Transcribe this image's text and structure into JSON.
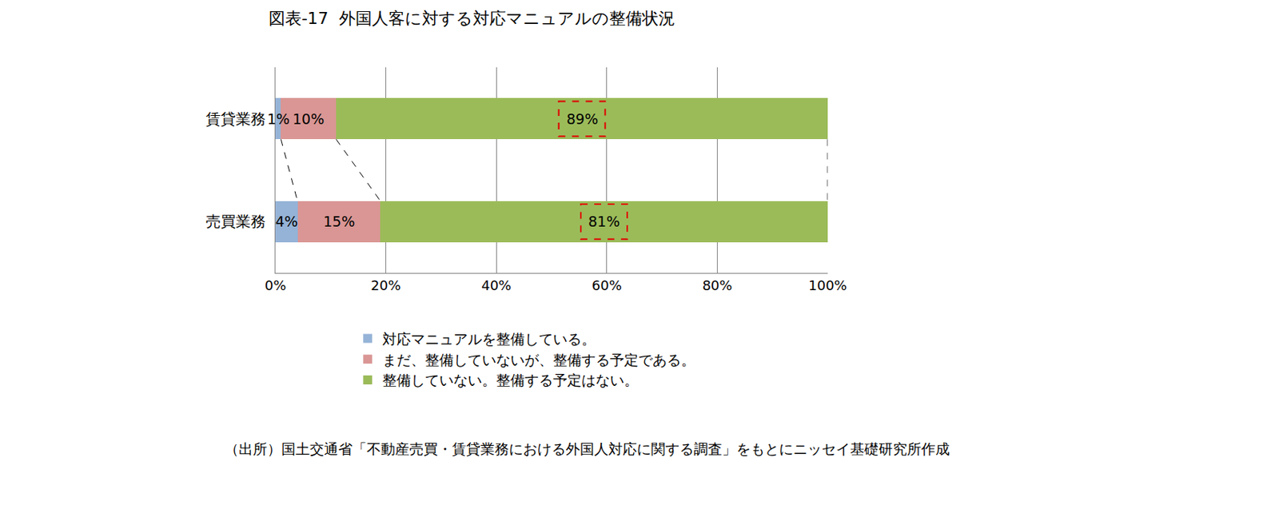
{
  "chart_data": {
    "type": "bar",
    "title": "図表-17  外国人客に対する対応マニュアルの整備状況",
    "orientation": "horizontal",
    "stacked": true,
    "data_labels": true,
    "grid": true,
    "legend": "bottom",
    "categories": [
      "賃貸業務",
      "売買業務"
    ],
    "series": [
      {
        "name": "対応マニュアルを整備している。",
        "color": "#95b3d7",
        "values": [
          1,
          4
        ],
        "value_labels": [
          "1%",
          "4%"
        ]
      },
      {
        "name": "まだ、整備していないが、整備する予定である。",
        "color": "#d99694",
        "values": [
          10,
          15
        ],
        "value_labels": [
          "10%",
          "15%"
        ]
      },
      {
        "name": "整備していない。整備する予定はない。",
        "color": "#9bbb59",
        "values": [
          89,
          81
        ],
        "value_labels": [
          "89%",
          "81%"
        ]
      }
    ],
    "xlim": [
      0,
      100
    ],
    "xticks": [
      {
        "value": 0,
        "label": "0%"
      },
      {
        "value": 20,
        "label": "20%"
      },
      {
        "value": 40,
        "label": "40%"
      },
      {
        "value": 60,
        "label": "60%"
      },
      {
        "value": 80,
        "label": "80%"
      },
      {
        "value": 100,
        "label": "100%"
      }
    ],
    "note": "（出所）国土交通省「不動産売買・賃貸業務における外国人対応に関する調査」をもとにニッセイ基礎研究所作成"
  }
}
